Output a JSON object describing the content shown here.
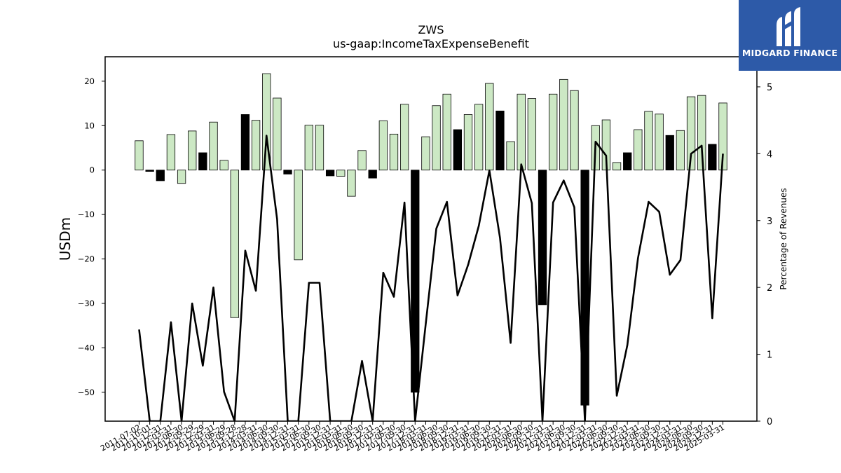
{
  "logo": {
    "text": "MIDGARD FINANCE"
  },
  "chart_data": {
    "type": "bar",
    "title": "ZWS",
    "subtitle": "us-gaap:IncomeTaxExpenseBenefit",
    "ylabel": "USDm",
    "y2label": "Percentage of Revenues",
    "ylim": [
      -56.5,
      25.5
    ],
    "y2lim": [
      0,
      5.45
    ],
    "yticks": [
      20,
      10,
      0,
      -10,
      -20,
      -30,
      -40,
      -50
    ],
    "y2ticks": [
      0,
      1,
      2,
      3,
      4,
      5
    ],
    "categories": [
      "2011-07-02",
      "2011-10-01",
      "2011-12-31",
      "2012-03-31",
      "2012-06-30",
      "2012-09-29",
      "2012-12-29",
      "2013-03-31",
      "2013-06-29",
      "2013-09-28",
      "2013-12-28",
      "2014-03-31",
      "2014-06-30",
      "2014-09-30",
      "2014-12-31",
      "2015-03-31",
      "2015-06-30",
      "2015-09-30",
      "2015-12-31",
      "2016-03-31",
      "2016-06-30",
      "2016-09-30",
      "2016-12-31",
      "2017-03-31",
      "2017-06-30",
      "2017-09-30",
      "2017-12-31",
      "2018-03-31",
      "2018-06-30",
      "2018-09-30",
      "2018-12-31",
      "2019-03-31",
      "2019-06-30",
      "2019-09-30",
      "2019-12-31",
      "2020-03-31",
      "2020-06-30",
      "2020-09-30",
      "2020-12-31",
      "2021-03-31",
      "2021-06-30",
      "2021-09-30",
      "2021-12-31",
      "2022-03-31",
      "2022-06-30",
      "2022-09-30",
      "2022-12-31",
      "2023-03-31",
      "2023-06-30",
      "2023-09-30",
      "2023-12-31",
      "2024-03-31",
      "2024-06-30",
      "2024-09-30",
      "2024-12-31",
      "2025-03-31"
    ],
    "bar_colors": {
      "positive_growth": "#cce8c4",
      "negative_growth": "#000000",
      "line": "#000000"
    },
    "series": [
      {
        "name": "IncomeTaxExpenseBenefit",
        "values": [
          6.6,
          -0.3,
          -2.4,
          8.0,
          -3.0,
          8.8,
          3.9,
          10.8,
          2.2,
          -33.2,
          12.5,
          11.2,
          21.7,
          16.2,
          -0.9,
          -20.2,
          10.1,
          10.1,
          -1.3,
          -1.4,
          -5.9,
          4.4,
          -1.8,
          11.1,
          8.1,
          14.8,
          -50.0,
          7.5,
          14.5,
          17.1,
          9.1,
          12.5,
          14.8,
          19.5,
          13.3,
          6.4,
          17.1,
          16.1,
          -30.3,
          17.1,
          20.4,
          17.9,
          -52.9,
          10.0,
          11.3,
          1.7,
          3.9,
          9.1,
          13.2,
          12.6,
          7.8,
          8.9,
          16.5,
          16.8,
          5.8,
          15.1
        ],
        "highlight": [
          "g",
          "k",
          "k",
          "g",
          "g",
          "g",
          "k",
          "g",
          "g",
          "g",
          "k",
          "g",
          "g",
          "g",
          "k",
          "g",
          "g",
          "g",
          "k",
          "g",
          "g",
          "g",
          "k",
          "g",
          "g",
          "g",
          "k",
          "g",
          "g",
          "g",
          "k",
          "g",
          "g",
          "g",
          "k",
          "g",
          "g",
          "g",
          "k",
          "g",
          "g",
          "g",
          "k",
          "g",
          "g",
          "g",
          "k",
          "g",
          "g",
          "g",
          "k",
          "g",
          "g",
          "g",
          "k",
          "g"
        ]
      },
      {
        "name": "Percentage of Revenues",
        "axis": "right",
        "values": [
          1.37,
          0,
          0,
          1.48,
          0,
          1.76,
          0.83,
          2.0,
          0.44,
          0,
          2.55,
          1.95,
          4.27,
          3.02,
          0,
          0,
          2.07,
          2.07,
          0,
          0,
          0,
          0.9,
          0,
          2.22,
          1.86,
          3.27,
          0,
          1.45,
          2.88,
          3.28,
          1.88,
          2.34,
          2.92,
          3.75,
          2.74,
          1.17,
          3.84,
          3.26,
          0,
          3.27,
          3.6,
          3.2,
          0,
          4.18,
          3.97,
          0.38,
          1.14,
          2.44,
          3.28,
          3.13,
          2.19,
          2.41,
          4.0,
          4.12,
          1.54,
          4.0
        ]
      }
    ]
  }
}
